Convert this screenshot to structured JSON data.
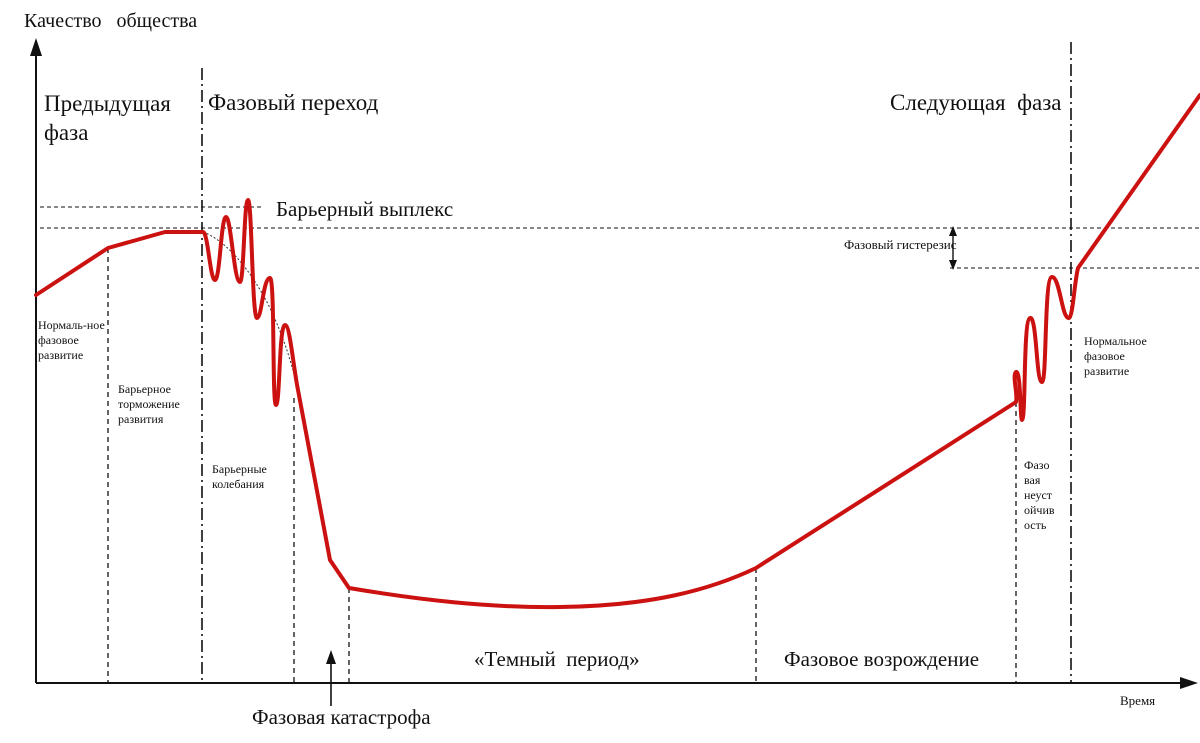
{
  "axes": {
    "y_label": "Качество   общества",
    "x_label": "Время"
  },
  "phases": {
    "previous": "Предыдущая фаза",
    "transition": "Фазовый переход",
    "next": "Следующая  фаза"
  },
  "labels": {
    "barrier_spike": "Барьерный выплекс",
    "phase_hysteresis": "Фазовый гистерезис",
    "normal_left": "Нормаль-ное фазовое развитие",
    "barrier_braking": "Барьерное торможение развития",
    "barrier_oscillations": "Барьерные колебания",
    "phase_catastrophe": "Фазовая катастрофа",
    "dark_period": "«Темный  период»",
    "phase_revival": "Фазовое возрождение",
    "phase_instability": "Фазо вая неуст ойчив ость",
    "normal_right": "Нормальное фазовое развитие"
  },
  "colors": {
    "curve": "#cc1111",
    "lines": "#111111"
  }
}
